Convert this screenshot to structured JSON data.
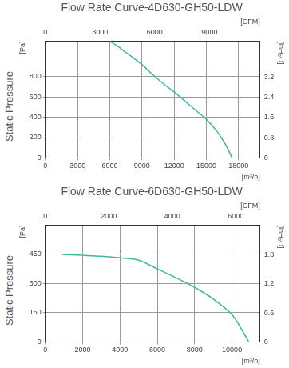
{
  "chart_data": [
    {
      "type": "line",
      "title": "Flow Rate Curve-4D630-GH50-LDW",
      "ylabel": "Static Pressure",
      "yunit": "[Pa]",
      "y2unit": "[inH₂O]",
      "xunit": "[m³/h]",
      "x2unit": "[CFM]",
      "x": [
        6000,
        7000,
        8000,
        9000,
        10000,
        11000,
        12000,
        13000,
        14000,
        15000,
        16000,
        16800,
        17400
      ],
      "series": [
        {
          "color": "#3cb8a0",
          "values": [
            1150,
            1080,
            1000,
            920,
            820,
            730,
            650,
            560,
            470,
            380,
            260,
            130,
            0
          ]
        }
      ],
      "xlim": [
        0,
        20000
      ],
      "xticks": [
        0,
        3000,
        6000,
        9000,
        12000,
        15000,
        18000
      ],
      "x2lim": [
        0,
        11772
      ],
      "x2ticks": [
        0,
        3000,
        6000,
        9000
      ],
      "ylim": [
        0,
        1150
      ],
      "yticks": [
        0,
        200,
        400,
        600,
        800
      ],
      "y2lim": [
        0,
        4.617
      ],
      "y2ticks": [
        0,
        0.8,
        1.6,
        2.4,
        3.2
      ],
      "grid": true
    },
    {
      "type": "line",
      "title": "Flow Rate Curve-6D630-GH50-LDW",
      "ylabel": "Static Pressure",
      "yunit": "[Pa]",
      "y2unit": "[inH₂O]",
      "xunit": "[m³/h]",
      "x2unit": "[CFM]",
      "x": [
        900,
        2000,
        3000,
        4000,
        5000,
        6000,
        7000,
        8000,
        9000,
        10000,
        10600,
        10900
      ],
      "series": [
        {
          "color": "#3cb8a0",
          "values": [
            450,
            445,
            440,
            432,
            420,
            375,
            330,
            280,
            220,
            140,
            50,
            0
          ]
        }
      ],
      "xlim": [
        0,
        11500
      ],
      "xticks": [
        0,
        2000,
        4000,
        6000,
        8000,
        10000
      ],
      "x2lim": [
        0,
        6768
      ],
      "x2ticks": [
        0,
        2000,
        4000,
        6000
      ],
      "ylim": [
        0,
        600
      ],
      "yticks": [
        0,
        150,
        300,
        450
      ],
      "y2lim": [
        0,
        2.409
      ],
      "y2ticks": [
        0,
        0.6,
        1.2,
        1.8
      ],
      "grid": true
    }
  ]
}
